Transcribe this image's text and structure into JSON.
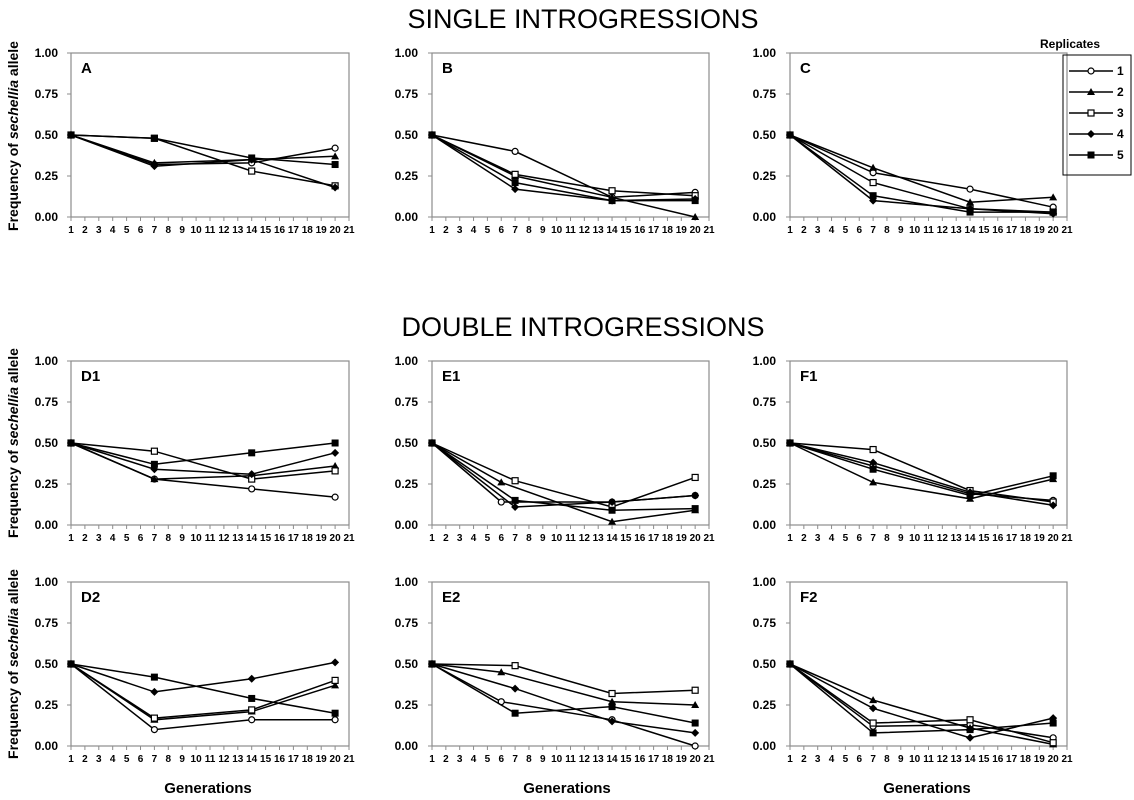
{
  "figure": {
    "section_titles": [
      "SINGLE INTROGRESSIONS",
      "DOUBLE INTROGRESSIONS"
    ],
    "ylabel_parts": [
      "Frequency of ",
      "sechellia",
      " allele"
    ],
    "xlabel": "Generations",
    "legend_title": "Replicates",
    "marker_styles": [
      "open-circle",
      "filled-triangle",
      "open-square",
      "filled-diamond",
      "filled-square"
    ],
    "series_color": "#000000",
    "frame_color": "#8c8c8c"
  },
  "chart_data": [
    {
      "type": "line",
      "panel": "A",
      "xlim": [
        1,
        21
      ],
      "ylim": [
        0,
        1
      ],
      "x_ticks": [
        1,
        2,
        3,
        4,
        5,
        6,
        7,
        8,
        9,
        10,
        11,
        12,
        13,
        14,
        15,
        16,
        17,
        18,
        19,
        20,
        21
      ],
      "y_ticks": [
        "0.00",
        "0.25",
        "0.50",
        "0.75",
        "1.00"
      ],
      "x": [
        1,
        7,
        14,
        20
      ],
      "series": [
        {
          "name": "1",
          "values": [
            0.5,
            0.32,
            0.33,
            0.42
          ]
        },
        {
          "name": "2",
          "values": [
            0.5,
            0.33,
            0.35,
            0.37
          ]
        },
        {
          "name": "3",
          "values": [
            0.5,
            0.48,
            0.28,
            0.19
          ]
        },
        {
          "name": "4",
          "values": [
            0.5,
            0.31,
            0.35,
            0.18
          ]
        },
        {
          "name": "5",
          "values": [
            0.5,
            0.48,
            0.36,
            0.32
          ]
        }
      ]
    },
    {
      "type": "line",
      "panel": "B",
      "xlim": [
        1,
        21
      ],
      "ylim": [
        0,
        1
      ],
      "x_ticks": [
        1,
        2,
        3,
        4,
        5,
        6,
        7,
        8,
        9,
        10,
        11,
        12,
        13,
        14,
        15,
        16,
        17,
        18,
        19,
        20,
        21
      ],
      "y_ticks": [
        "0.00",
        "0.25",
        "0.50",
        "0.75",
        "1.00"
      ],
      "x": [
        1,
        7,
        14,
        20
      ],
      "series": [
        {
          "name": "1",
          "values": [
            0.5,
            0.4,
            0.12,
            0.15
          ]
        },
        {
          "name": "2",
          "values": [
            0.5,
            0.25,
            0.12,
            0.0
          ]
        },
        {
          "name": "3",
          "values": [
            0.5,
            0.26,
            0.16,
            0.13
          ]
        },
        {
          "name": "4",
          "values": [
            0.5,
            0.17,
            0.1,
            0.11
          ]
        },
        {
          "name": "5",
          "values": [
            0.5,
            0.21,
            0.1,
            0.1
          ]
        }
      ]
    },
    {
      "type": "line",
      "panel": "C",
      "xlim": [
        1,
        21
      ],
      "ylim": [
        0,
        1
      ],
      "x_ticks": [
        1,
        2,
        3,
        4,
        5,
        6,
        7,
        8,
        9,
        10,
        11,
        12,
        13,
        14,
        15,
        16,
        17,
        18,
        19,
        20,
        21
      ],
      "y_ticks": [
        "0.00",
        "0.25",
        "0.50",
        "0.75",
        "1.00"
      ],
      "x": [
        1,
        7,
        14,
        20
      ],
      "series": [
        {
          "name": "1",
          "values": [
            0.5,
            0.27,
            0.17,
            0.06
          ]
        },
        {
          "name": "2",
          "values": [
            0.5,
            0.3,
            0.09,
            0.12
          ]
        },
        {
          "name": "3",
          "values": [
            0.5,
            0.21,
            0.05,
            0.03
          ]
        },
        {
          "name": "4",
          "values": [
            0.5,
            0.1,
            0.05,
            0.02
          ]
        },
        {
          "name": "5",
          "values": [
            0.5,
            0.13,
            0.03,
            0.03
          ]
        }
      ]
    },
    {
      "type": "line",
      "panel": "D1",
      "xlim": [
        1,
        21
      ],
      "ylim": [
        0,
        1
      ],
      "x_ticks": [
        1,
        2,
        3,
        4,
        5,
        6,
        7,
        8,
        9,
        10,
        11,
        12,
        13,
        14,
        15,
        16,
        17,
        18,
        19,
        20,
        21
      ],
      "y_ticks": [
        "0.00",
        "0.25",
        "0.50",
        "0.75",
        "1.00"
      ],
      "x": [
        1,
        7,
        14,
        20
      ],
      "series": [
        {
          "name": "1",
          "values": [
            0.5,
            0.28,
            0.22,
            0.17
          ]
        },
        {
          "name": "2",
          "values": [
            0.5,
            0.28,
            0.3,
            0.36
          ]
        },
        {
          "name": "3",
          "values": [
            0.5,
            0.45,
            0.28,
            0.33
          ]
        },
        {
          "name": "4",
          "values": [
            0.5,
            0.34,
            0.31,
            0.44
          ]
        },
        {
          "name": "5",
          "values": [
            0.5,
            0.37,
            0.44,
            0.5
          ]
        }
      ]
    },
    {
      "type": "line",
      "panel": "E1",
      "xlim": [
        1,
        21
      ],
      "ylim": [
        0,
        1
      ],
      "x_ticks": [
        1,
        2,
        3,
        4,
        5,
        6,
        7,
        8,
        9,
        10,
        11,
        12,
        13,
        14,
        15,
        16,
        17,
        18,
        19,
        20,
        21
      ],
      "y_ticks": [
        "0.00",
        "0.25",
        "0.50",
        "0.75",
        "1.00"
      ],
      "x_series": [
        [
          1,
          6,
          14,
          20
        ],
        [
          1,
          6,
          14,
          20
        ],
        [
          1,
          7,
          14,
          20
        ],
        [
          1,
          7,
          14,
          20
        ],
        [
          1,
          7,
          14,
          20
        ]
      ],
      "series": [
        {
          "name": "1",
          "values": [
            0.5,
            0.14,
            0.14,
            0.18
          ]
        },
        {
          "name": "2",
          "values": [
            0.5,
            0.26,
            0.02,
            0.09
          ]
        },
        {
          "name": "3",
          "values": [
            0.5,
            0.27,
            0.11,
            0.29
          ]
        },
        {
          "name": "4",
          "values": [
            0.5,
            0.11,
            0.14,
            0.18
          ]
        },
        {
          "name": "5",
          "values": [
            0.5,
            0.15,
            0.09,
            0.1
          ]
        }
      ]
    },
    {
      "type": "line",
      "panel": "F1",
      "xlim": [
        1,
        21
      ],
      "ylim": [
        0,
        1
      ],
      "x_ticks": [
        1,
        2,
        3,
        4,
        5,
        6,
        7,
        8,
        9,
        10,
        11,
        12,
        13,
        14,
        15,
        16,
        17,
        18,
        19,
        20,
        21
      ],
      "y_ticks": [
        "0.00",
        "0.25",
        "0.50",
        "0.75",
        "1.00"
      ],
      "x": [
        1,
        7,
        14,
        20
      ],
      "series": [
        {
          "name": "1",
          "values": [
            0.5,
            0.36,
            0.19,
            0.15
          ]
        },
        {
          "name": "2",
          "values": [
            0.5,
            0.26,
            0.16,
            0.28
          ]
        },
        {
          "name": "3",
          "values": [
            0.5,
            0.46,
            0.21,
            0.14
          ]
        },
        {
          "name": "4",
          "values": [
            0.5,
            0.38,
            0.2,
            0.12
          ]
        },
        {
          "name": "5",
          "values": [
            0.5,
            0.34,
            0.18,
            0.3
          ]
        }
      ]
    },
    {
      "type": "line",
      "panel": "D2",
      "xlim": [
        1,
        21
      ],
      "ylim": [
        0,
        1
      ],
      "x_ticks": [
        1,
        2,
        3,
        4,
        5,
        6,
        7,
        8,
        9,
        10,
        11,
        12,
        13,
        14,
        15,
        16,
        17,
        18,
        19,
        20,
        21
      ],
      "y_ticks": [
        "0.00",
        "0.25",
        "0.50",
        "0.75",
        "1.00"
      ],
      "x": [
        1,
        7,
        14,
        20
      ],
      "series": [
        {
          "name": "1",
          "values": [
            0.5,
            0.1,
            0.16,
            0.16
          ]
        },
        {
          "name": "2",
          "values": [
            0.5,
            0.16,
            0.21,
            0.37
          ]
        },
        {
          "name": "3",
          "values": [
            0.5,
            0.17,
            0.22,
            0.4
          ]
        },
        {
          "name": "4",
          "values": [
            0.5,
            0.33,
            0.41,
            0.51
          ]
        },
        {
          "name": "5",
          "values": [
            0.5,
            0.42,
            0.29,
            0.2
          ]
        }
      ]
    },
    {
      "type": "line",
      "panel": "E2",
      "xlim": [
        1,
        21
      ],
      "ylim": [
        0,
        1
      ],
      "x_ticks": [
        1,
        2,
        3,
        4,
        5,
        6,
        7,
        8,
        9,
        10,
        11,
        12,
        13,
        14,
        15,
        16,
        17,
        18,
        19,
        20,
        21
      ],
      "y_ticks": [
        "0.00",
        "0.25",
        "0.50",
        "0.75",
        "1.00"
      ],
      "x_series": [
        [
          1,
          6,
          14,
          20
        ],
        [
          1,
          6,
          14,
          20
        ],
        [
          1,
          7,
          14,
          20
        ],
        [
          1,
          7,
          14,
          20
        ],
        [
          1,
          7,
          14,
          20
        ]
      ],
      "series": [
        {
          "name": "1",
          "values": [
            0.5,
            0.27,
            0.16,
            0.0
          ]
        },
        {
          "name": "2",
          "values": [
            0.5,
            0.45,
            0.27,
            0.25
          ]
        },
        {
          "name": "3",
          "values": [
            0.5,
            0.49,
            0.32,
            0.34
          ]
        },
        {
          "name": "4",
          "values": [
            0.5,
            0.35,
            0.15,
            0.08
          ]
        },
        {
          "name": "5",
          "values": [
            0.5,
            0.2,
            0.24,
            0.14
          ]
        }
      ]
    },
    {
      "type": "line",
      "panel": "F2",
      "xlim": [
        1,
        21
      ],
      "ylim": [
        0,
        1
      ],
      "x_ticks": [
        1,
        2,
        3,
        4,
        5,
        6,
        7,
        8,
        9,
        10,
        11,
        12,
        13,
        14,
        15,
        16,
        17,
        18,
        19,
        20,
        21
      ],
      "y_ticks": [
        "0.00",
        "0.25",
        "0.50",
        "0.75",
        "1.00"
      ],
      "x": [
        1,
        7,
        14,
        20
      ],
      "series": [
        {
          "name": "1",
          "values": [
            0.5,
            0.12,
            0.13,
            0.05
          ]
        },
        {
          "name": "2",
          "values": [
            0.5,
            0.28,
            0.11,
            0.01
          ]
        },
        {
          "name": "3",
          "values": [
            0.5,
            0.14,
            0.16,
            0.02
          ]
        },
        {
          "name": "4",
          "values": [
            0.5,
            0.23,
            0.05,
            0.17
          ]
        },
        {
          "name": "5",
          "values": [
            0.5,
            0.08,
            0.1,
            0.14
          ]
        }
      ]
    }
  ]
}
